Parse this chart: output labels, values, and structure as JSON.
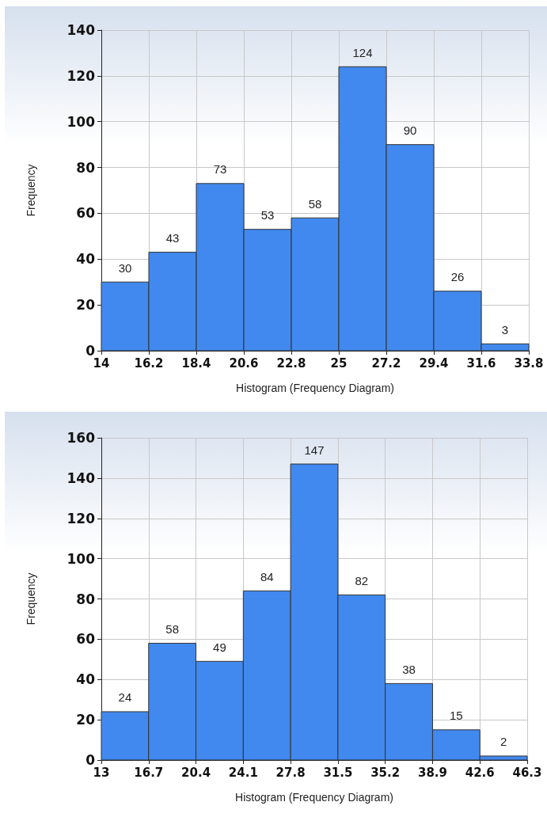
{
  "chart_data": [
    {
      "type": "histogram",
      "xlabel": "Histogram (Frequency Diagram)",
      "ylabel": "Frequency",
      "bins": [
        14,
        16.2,
        18.4,
        20.6,
        22.8,
        25,
        27.2,
        29.4,
        31.6,
        33.8
      ],
      "values": [
        30,
        43,
        73,
        53,
        58,
        124,
        90,
        26,
        3
      ],
      "color": "#4189ee",
      "data_labels": true,
      "grid": true,
      "xlim": [
        14,
        33.8
      ],
      "xticks": [
        14,
        16.2,
        18.4,
        20.6,
        22.8,
        25,
        27.2,
        29.4,
        31.6,
        33.8
      ],
      "ylim": [
        0,
        140
      ],
      "yticks": [
        0,
        20,
        40,
        60,
        80,
        100,
        120,
        140
      ]
    },
    {
      "type": "histogram",
      "xlabel": "Histogram (Frequency Diagram)",
      "ylabel": "Frequency",
      "bins": [
        13,
        16.7,
        20.4,
        24.1,
        27.8,
        31.5,
        35.2,
        38.9,
        42.6,
        46.3
      ],
      "values": [
        24,
        58,
        49,
        84,
        147,
        82,
        38,
        15,
        2
      ],
      "color": "#4189ee",
      "data_labels": true,
      "grid": true,
      "xlim": [
        13,
        46.3
      ],
      "xticks": [
        13,
        16.7,
        20.4,
        24.1,
        27.8,
        31.5,
        35.2,
        38.9,
        42.6,
        46.3
      ],
      "ylim": [
        0,
        160
      ],
      "yticks": [
        0,
        20,
        40,
        60,
        80,
        100,
        120,
        140,
        160
      ]
    }
  ]
}
